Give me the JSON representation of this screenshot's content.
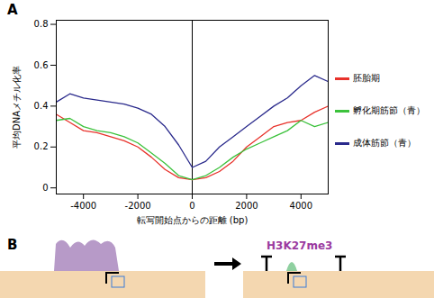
{
  "chart_data": {
    "type": "line",
    "title": "A",
    "x_label": "転写開始点からの距離 (bp)",
    "y_label": "平均DNAメチル化率",
    "x": [
      -5000,
      -4500,
      -4000,
      -3500,
      -3000,
      -2500,
      -2000,
      -1500,
      -1000,
      -500,
      0,
      500,
      1000,
      1500,
      2000,
      2500,
      3000,
      3500,
      4000,
      4500,
      5000
    ],
    "series": [
      {
        "name": "胚胎期",
        "color": "#e8322b",
        "values": [
          0.36,
          0.32,
          0.28,
          0.27,
          0.25,
          0.23,
          0.2,
          0.15,
          0.09,
          0.05,
          0.04,
          0.05,
          0.08,
          0.13,
          0.2,
          0.25,
          0.3,
          0.32,
          0.33,
          0.37,
          0.4
        ]
      },
      {
        "name": "孵化期筋節（青）",
        "color": "#3cc23c",
        "values": [
          0.33,
          0.34,
          0.3,
          0.28,
          0.27,
          0.25,
          0.22,
          0.17,
          0.12,
          0.06,
          0.04,
          0.06,
          0.1,
          0.15,
          0.19,
          0.22,
          0.25,
          0.28,
          0.33,
          0.3,
          0.32
        ]
      },
      {
        "name": "成体筋節（青）",
        "color": "#2a2a8c",
        "values": [
          0.42,
          0.46,
          0.44,
          0.43,
          0.42,
          0.41,
          0.39,
          0.36,
          0.3,
          0.21,
          0.1,
          0.13,
          0.2,
          0.25,
          0.3,
          0.35,
          0.4,
          0.44,
          0.5,
          0.55,
          0.52
        ]
      }
    ],
    "xlim": [
      -5000,
      5000
    ],
    "xticks": [
      -4000,
      -2000,
      0,
      2000,
      4000
    ],
    "ylim": [
      -0.03,
      0.82
    ],
    "yticks": [
      0,
      0.2,
      0.4,
      0.6,
      0.8
    ],
    "legend": "right"
  },
  "panel_b": {
    "label": "B",
    "annotations": [
      "H3K27me3"
    ]
  }
}
